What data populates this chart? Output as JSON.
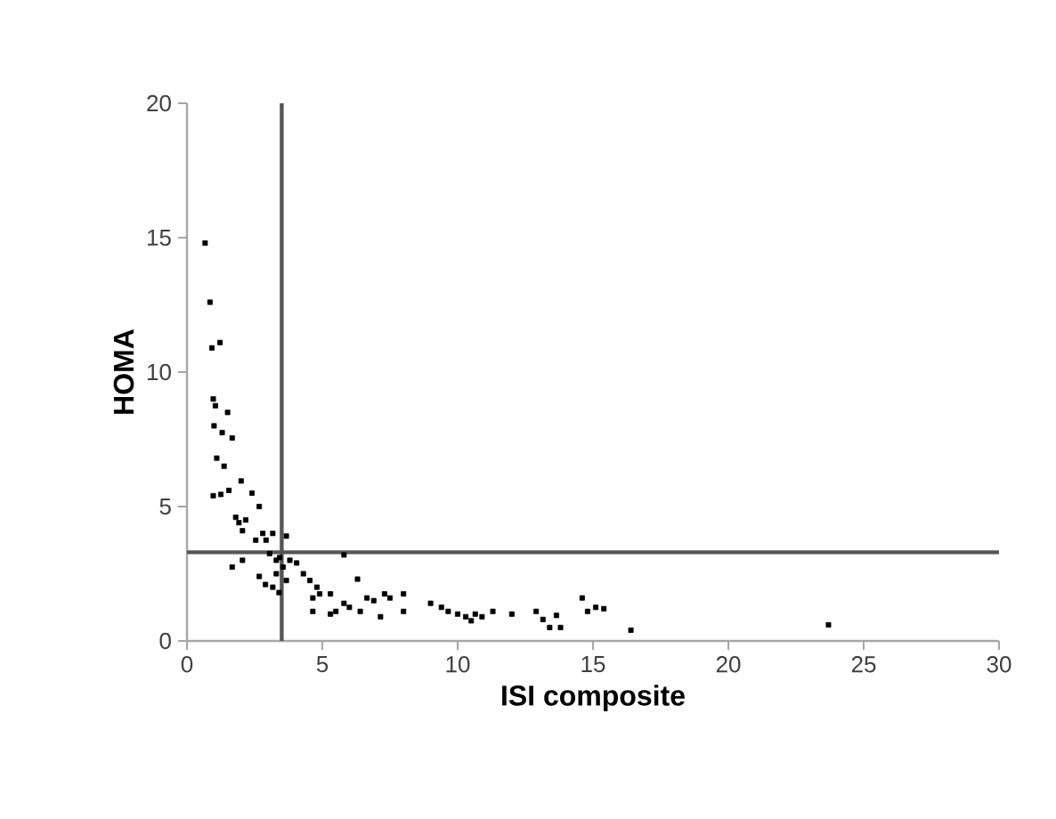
{
  "chart_data": {
    "type": "scatter",
    "xlabel": "ISI composite",
    "ylabel": "HOMA",
    "xlim": [
      0,
      30
    ],
    "ylim": [
      0,
      20
    ],
    "xticks": [
      0,
      5,
      10,
      15,
      20,
      25,
      30
    ],
    "yticks": [
      0,
      5,
      10,
      15,
      20
    ],
    "marker": "square",
    "ref_lines": [
      {
        "axis": "x",
        "value": 3.5,
        "color": "#555555"
      },
      {
        "axis": "y",
        "value": 3.3,
        "color": "#555555"
      }
    ],
    "series": [
      {
        "color": "#000000",
        "x": [
          0.67,
          0.85,
          0.92,
          1.22,
          0.97,
          1.05,
          1.5,
          1.0,
          1.3,
          1.67,
          1.1,
          1.37,
          0.97,
          1.25,
          1.55,
          2.0,
          2.4,
          1.8,
          1.92,
          2.17,
          2.05,
          2.67,
          2.8,
          2.54,
          2.92,
          3.17,
          3.67,
          1.67,
          2.05,
          2.67,
          2.9,
          3.05,
          3.3,
          3.42,
          3.55,
          3.3,
          3.67,
          3.8,
          4.05,
          4.3,
          4.54,
          4.8,
          4.9,
          4.65,
          5.3,
          5.8,
          4.65,
          5.3,
          5.5,
          5.8,
          6.0,
          6.3,
          6.4,
          6.65,
          6.9,
          7.15,
          7.3,
          7.5,
          8.0,
          8.0,
          9.0,
          9.4,
          9.65,
          10.0,
          10.3,
          10.5,
          10.65,
          10.9,
          11.3,
          12.0,
          12.9,
          13.15,
          13.4,
          13.65,
          13.8,
          14.6,
          14.8,
          15.1,
          15.4,
          16.4,
          23.7,
          3.17,
          3.4
        ],
        "values": [
          14.8,
          12.6,
          10.9,
          11.1,
          9.0,
          8.75,
          8.5,
          8.0,
          7.75,
          7.55,
          6.8,
          6.5,
          5.4,
          5.45,
          5.6,
          5.95,
          5.5,
          4.6,
          4.4,
          4.5,
          4.1,
          5.0,
          4.0,
          3.75,
          3.75,
          4.0,
          3.9,
          2.75,
          3.0,
          2.4,
          2.1,
          3.25,
          3.0,
          3.1,
          2.75,
          2.5,
          2.25,
          3.0,
          2.9,
          2.5,
          2.25,
          2.0,
          1.75,
          1.6,
          1.75,
          3.2,
          1.1,
          1.0,
          1.1,
          1.4,
          1.25,
          2.3,
          1.1,
          1.6,
          1.5,
          0.9,
          1.75,
          1.6,
          1.75,
          1.1,
          1.4,
          1.25,
          1.1,
          1.0,
          0.9,
          0.75,
          1.0,
          0.9,
          1.1,
          1.0,
          1.1,
          0.8,
          0.5,
          0.95,
          0.5,
          1.6,
          1.1,
          1.25,
          1.2,
          0.4,
          0.6,
          2.0,
          1.8
        ]
      }
    ]
  }
}
